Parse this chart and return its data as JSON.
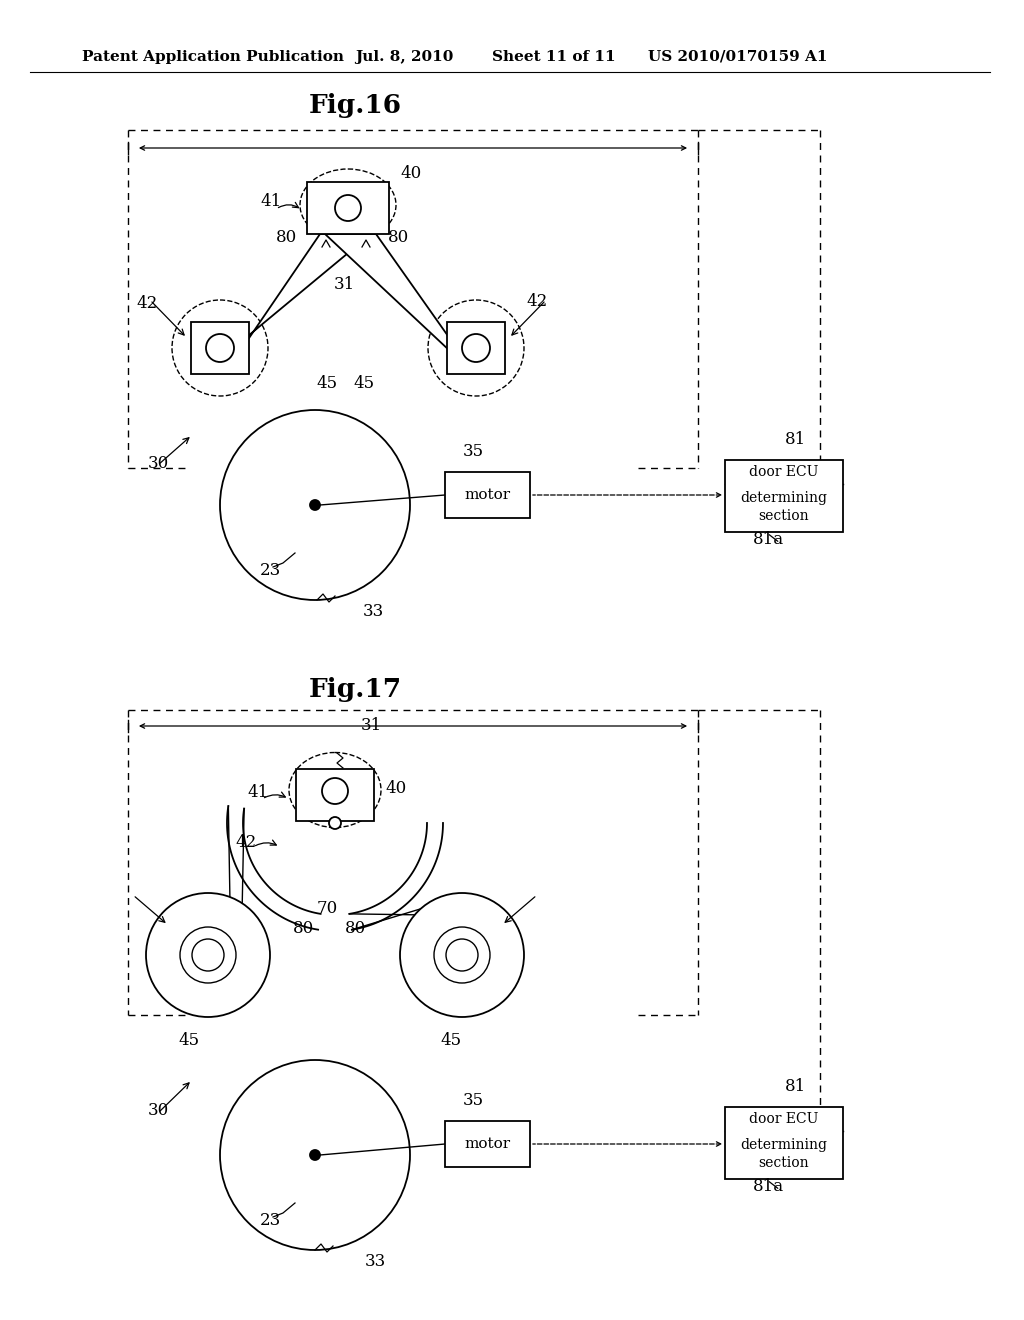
{
  "bg_color": "#ffffff",
  "header_text": "Patent Application Publication",
  "header_date": "Jul. 8, 2010",
  "header_sheet": "Sheet 11 of 11",
  "header_patent": "US 2010/0170159 A1",
  "fig16_title": "Fig.16",
  "fig17_title": "Fig.17"
}
